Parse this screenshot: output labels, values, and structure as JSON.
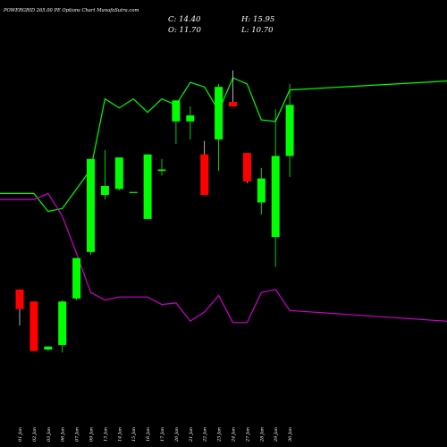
{
  "header": {
    "title": "POWERGRID 265.00  PE Options  Chart MunafaSutra.com",
    "close": "C: 14.40",
    "high": "H: 15.95",
    "open": "O: 11.70",
    "low": "L: 10.70"
  },
  "colors": {
    "background": "#000000",
    "up": "#00ff00",
    "down": "#ff0000",
    "line_green": "#00ff00",
    "line_purple": "#cc00cc",
    "text": "#ffffff"
  },
  "chart_data": {
    "type": "candlestick",
    "categories": [
      "01 Jan",
      "02 Jan",
      "03 Jan",
      "06 Jan",
      "07 Jan",
      "09 Jan",
      "13 Jan",
      "14 Jan",
      "15 Jan",
      "16 Jan",
      "17 Jan",
      "20 Jan",
      "21 Jan",
      "22 Jan",
      "23 Jan",
      "24 Jan",
      "27 Jan",
      "28 Jan",
      "29 Jan",
      "30 Jan"
    ],
    "candles": [
      {
        "open": 9.95,
        "high": 9.95,
        "low": 8.75,
        "close": 9.3
      },
      {
        "open": 9.55,
        "high": 9.55,
        "low": 7.9,
        "close": 7.9
      },
      {
        "open": 7.95,
        "high": 8.05,
        "low": 7.9,
        "close": 8.05
      },
      {
        "open": 8.1,
        "high": 9.6,
        "low": 7.85,
        "close": 9.55
      },
      {
        "open": 9.65,
        "high": 11.0,
        "low": 9.6,
        "close": 11.0
      },
      {
        "open": 11.2,
        "high": 14.3,
        "low": 11.1,
        "close": 14.3
      },
      {
        "open": 13.1,
        "high": 14.6,
        "low": 12.95,
        "close": 13.4
      },
      {
        "open": 13.3,
        "high": 14.35,
        "low": 13.25,
        "close": 14.35
      },
      {
        "open": 13.2,
        "high": 13.2,
        "low": 13.2,
        "close": 13.2
      },
      {
        "open": 12.3,
        "high": 14.45,
        "low": 12.3,
        "close": 14.45
      },
      {
        "open": 13.9,
        "high": 14.3,
        "low": 13.75,
        "close": 13.95
      },
      {
        "open": 15.55,
        "high": 16.25,
        "low": 14.8,
        "close": 16.25
      },
      {
        "open": 15.55,
        "high": 16.05,
        "low": 14.95,
        "close": 15.75
      },
      {
        "open": 14.45,
        "high": 14.9,
        "low": 13.1,
        "close": 13.1
      },
      {
        "open": 14.95,
        "high": 16.8,
        "low": 13.9,
        "close": 16.7
      },
      {
        "open": 16.2,
        "high": 17.25,
        "low": 16.05,
        "close": 16.05
      },
      {
        "open": 14.5,
        "high": 14.5,
        "low": 13.5,
        "close": 13.55
      },
      {
        "open": 12.85,
        "high": 14.0,
        "low": 12.45,
        "close": 13.65
      },
      {
        "open": 11.7,
        "high": 15.95,
        "low": 10.7,
        "close": 14.4
      },
      {
        "open": 14.4,
        "high": 16.8,
        "low": 13.7,
        "close": 16.1
      }
    ],
    "series": [
      {
        "values": [
          56.3,
          56.3,
          55.1,
          55.3,
          56.6,
          57.9,
          62.6,
          62.0,
          62.6,
          61.7,
          62.6,
          62.2,
          63.7,
          63.4,
          61.8,
          64.0,
          63.6,
          61.2,
          61.1,
          63.2
        ]
      },
      {
        "values": [
          55.9,
          55.9,
          56.3,
          54.8,
          52.3,
          49.7,
          49.2,
          49.4,
          49.4,
          49.4,
          48.9,
          49.0,
          47.8,
          48.4,
          49.5,
          47.7,
          47.7,
          49.7,
          49.9,
          48.5
        ]
      }
    ],
    "ylim_price": [
      5,
      19
    ],
    "ylim_lines": [
      40,
      68
    ]
  }
}
